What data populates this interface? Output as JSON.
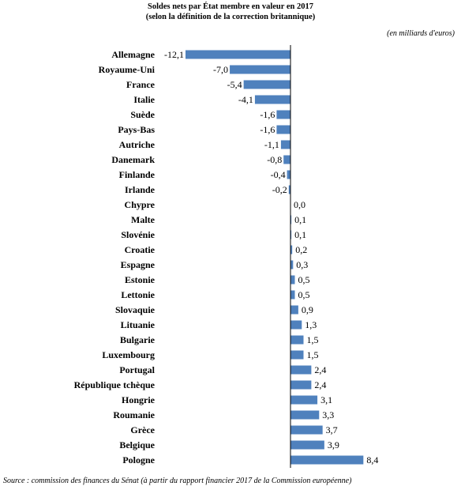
{
  "header": {
    "title_line1": "Soldes nets par État membre en valeur en 2017",
    "title_line2": "(selon la définition de la correction britannique)",
    "unit": "(en milliards d'euros)"
  },
  "footer": {
    "source": "Source : commission des finances du Sénat (à partir du rapport financier 2017 de la Commission européenne)"
  },
  "chart_data": {
    "type": "bar",
    "orientation": "horizontal",
    "title": "Soldes nets par État membre en valeur en 2017",
    "subtitle": "(selon la définition de la correction britannique)",
    "unit": "(en milliards d'euros)",
    "bar_color": "#4f81bd",
    "categories": [
      "Allemagne",
      "Royaume-Uni",
      "France",
      "Italie",
      "Suède",
      "Pays-Bas",
      "Autriche",
      "Danemark",
      "Finlande",
      "Irlande",
      "Chypre",
      "Malte",
      "Slovénie",
      "Croatie",
      "Espagne",
      "Estonie",
      "Lettonie",
      "Slovaquie",
      "Lituanie",
      "Bulgarie",
      "Luxembourg",
      "Portugal",
      "République tchèque",
      "Hongrie",
      "Roumanie",
      "Grèce",
      "Belgique",
      "Pologne"
    ],
    "values": [
      -12.1,
      -7.0,
      -5.4,
      -4.1,
      -1.6,
      -1.6,
      -1.1,
      -0.8,
      -0.4,
      -0.2,
      0.0,
      0.1,
      0.1,
      0.2,
      0.3,
      0.5,
      0.5,
      0.9,
      1.3,
      1.5,
      1.5,
      2.4,
      2.4,
      3.1,
      3.3,
      3.7,
      3.9,
      8.4
    ],
    "value_labels": [
      "-12,1",
      "-7,0",
      "-5,4",
      "-4,1",
      "-1,6",
      "-1,6",
      "-1,1",
      "-0,8",
      "-0,4",
      "-0,2",
      "0,0",
      "0,1",
      "0,1",
      "0,2",
      "0,3",
      "0,5",
      "0,5",
      "0,9",
      "1,3",
      "1,5",
      "1,5",
      "2,4",
      "2,4",
      "3,1",
      "3,3",
      "3,7",
      "3,9",
      "8,4"
    ],
    "xlim": [
      -12.1,
      8.4
    ],
    "grid": false,
    "legend": "none"
  }
}
